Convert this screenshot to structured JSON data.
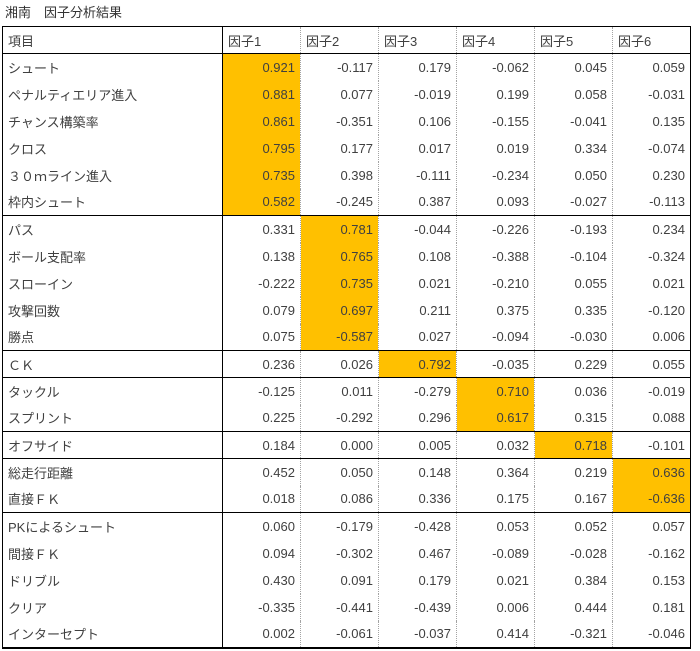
{
  "title": "湘南　因子分析結果",
  "colors": {
    "highlight": "#FFC000"
  },
  "table": {
    "columns": [
      "項目",
      "因子1",
      "因子2",
      "因子3",
      "因子4",
      "因子5",
      "因子6"
    ],
    "groups": [
      {
        "highlight_col": 0,
        "rows": [
          {
            "label": "シュート",
            "values": [
              "0.921",
              "-0.117",
              "0.179",
              "-0.062",
              "0.045",
              "0.059"
            ]
          },
          {
            "label": "ペナルティエリア進入",
            "values": [
              "0.881",
              "0.077",
              "-0.019",
              "0.199",
              "0.058",
              "-0.031"
            ]
          },
          {
            "label": "チャンス構築率",
            "values": [
              "0.861",
              "-0.351",
              "0.106",
              "-0.155",
              "-0.041",
              "0.135"
            ]
          },
          {
            "label": "クロス",
            "values": [
              "0.795",
              "0.177",
              "0.017",
              "0.019",
              "0.334",
              "-0.074"
            ]
          },
          {
            "label": "３０ｍライン進入",
            "values": [
              "0.735",
              "0.398",
              "-0.111",
              "-0.234",
              "0.050",
              "0.230"
            ]
          },
          {
            "label": "枠内シュート",
            "values": [
              "0.582",
              "-0.245",
              "0.387",
              "0.093",
              "-0.027",
              "-0.113"
            ]
          }
        ]
      },
      {
        "highlight_col": 1,
        "rows": [
          {
            "label": "パス",
            "values": [
              "0.331",
              "0.781",
              "-0.044",
              "-0.226",
              "-0.193",
              "0.234"
            ]
          },
          {
            "label": "ボール支配率",
            "values": [
              "0.138",
              "0.765",
              "0.108",
              "-0.388",
              "-0.104",
              "-0.324"
            ]
          },
          {
            "label": "スローイン",
            "values": [
              "-0.222",
              "0.735",
              "0.021",
              "-0.210",
              "0.055",
              "0.021"
            ]
          },
          {
            "label": "攻撃回数",
            "values": [
              "0.079",
              "0.697",
              "0.211",
              "0.375",
              "0.335",
              "-0.120"
            ]
          },
          {
            "label": "勝点",
            "values": [
              "0.075",
              "-0.587",
              "0.027",
              "-0.094",
              "-0.030",
              "0.006"
            ]
          }
        ]
      },
      {
        "highlight_col": 2,
        "rows": [
          {
            "label": "ＣＫ",
            "values": [
              "0.236",
              "0.026",
              "0.792",
              "-0.035",
              "0.229",
              "0.055"
            ]
          }
        ]
      },
      {
        "highlight_col": 3,
        "rows": [
          {
            "label": "タックル",
            "values": [
              "-0.125",
              "0.011",
              "-0.279",
              "0.710",
              "0.036",
              "-0.019"
            ]
          },
          {
            "label": "スプリント",
            "values": [
              "0.225",
              "-0.292",
              "0.296",
              "0.617",
              "0.315",
              "0.088"
            ]
          }
        ]
      },
      {
        "highlight_col": 4,
        "rows": [
          {
            "label": "オフサイド",
            "values": [
              "0.184",
              "0.000",
              "0.005",
              "0.032",
              "0.718",
              "-0.101"
            ]
          }
        ]
      },
      {
        "highlight_col": 5,
        "rows": [
          {
            "label": "総走行距離",
            "values": [
              "0.452",
              "0.050",
              "0.148",
              "0.364",
              "0.219",
              "0.636"
            ]
          },
          {
            "label": "直接ＦＫ",
            "values": [
              "0.018",
              "0.086",
              "0.336",
              "0.175",
              "0.167",
              "-0.636"
            ]
          }
        ]
      },
      {
        "highlight_col": null,
        "rows": [
          {
            "label": "PKによるシュート",
            "values": [
              "0.060",
              "-0.179",
              "-0.428",
              "0.053",
              "0.052",
              "0.057"
            ]
          },
          {
            "label": "間接ＦＫ",
            "values": [
              "0.094",
              "-0.302",
              "0.467",
              "-0.089",
              "-0.028",
              "-0.162"
            ]
          },
          {
            "label": "ドリブル",
            "values": [
              "0.430",
              "0.091",
              "0.179",
              "0.021",
              "0.384",
              "0.153"
            ]
          },
          {
            "label": "クリア",
            "values": [
              "-0.335",
              "-0.441",
              "-0.439",
              "0.006",
              "0.444",
              "0.181"
            ]
          },
          {
            "label": "インターセプト",
            "values": [
              "0.002",
              "-0.061",
              "-0.037",
              "0.414",
              "-0.321",
              "-0.046"
            ]
          }
        ]
      }
    ]
  }
}
